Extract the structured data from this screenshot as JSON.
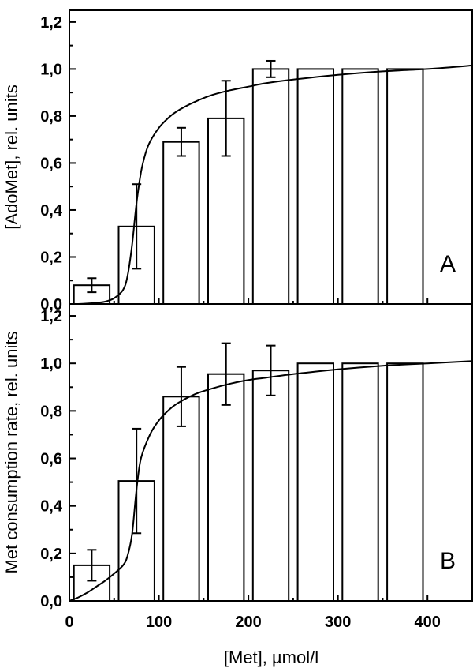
{
  "chart_data": [
    {
      "type": "bar",
      "panel_label": "A",
      "ylabel": "[AdoMet], rel. units",
      "xlabel": "",
      "ylim": [
        0,
        1.25
      ],
      "xlim": [
        0,
        450
      ],
      "yticks": [
        "0,0",
        "0,2",
        "0,4",
        "0,6",
        "0,8",
        "1,0",
        "1,2"
      ],
      "xticks": [],
      "grid": false,
      "x": [
        25,
        75,
        125,
        175,
        225,
        275,
        325,
        375
      ],
      "values": [
        0.08,
        0.33,
        0.69,
        0.79,
        1.0,
        1.0,
        1.0,
        1.0
      ],
      "errors": [
        0.03,
        0.18,
        0.06,
        0.16,
        0.035,
        0,
        0,
        0
      ],
      "fit_curve": {
        "x": [
          0,
          10,
          20,
          30,
          40,
          50,
          60,
          65,
          70,
          75,
          80,
          85,
          90,
          100,
          110,
          120,
          140,
          160,
          180,
          200,
          220,
          250,
          300,
          350,
          400,
          450
        ],
        "y": [
          0,
          0,
          0.002,
          0.005,
          0.01,
          0.025,
          0.06,
          0.12,
          0.25,
          0.43,
          0.56,
          0.64,
          0.69,
          0.75,
          0.79,
          0.82,
          0.86,
          0.89,
          0.91,
          0.925,
          0.94,
          0.955,
          0.975,
          0.99,
          1.0,
          1.015
        ]
      }
    },
    {
      "type": "bar",
      "panel_label": "B",
      "ylabel": "Met consumption rate, rel. units",
      "xlabel": "[Met], µmol/l",
      "ylim": [
        0,
        1.25
      ],
      "xlim": [
        0,
        450
      ],
      "yticks": [
        "0,0",
        "0,2",
        "0,4",
        "0,6",
        "0,8",
        "1,0",
        "1,2"
      ],
      "xticks": [
        "0",
        "100",
        "200",
        "300",
        "400"
      ],
      "grid": false,
      "x": [
        25,
        75,
        125,
        175,
        225,
        275,
        325,
        375
      ],
      "values": [
        0.15,
        0.505,
        0.86,
        0.955,
        0.97,
        1.0,
        1.0,
        1.0
      ],
      "errors": [
        0.065,
        0.22,
        0.125,
        0.13,
        0.105,
        0,
        0,
        0
      ],
      "fit_curve": {
        "x": [
          0,
          10,
          20,
          30,
          40,
          50,
          60,
          65,
          70,
          75,
          80,
          90,
          100,
          110,
          120,
          140,
          160,
          180,
          200,
          220,
          250,
          300,
          350,
          400,
          450
        ],
        "y": [
          0,
          0.015,
          0.035,
          0.06,
          0.085,
          0.115,
          0.15,
          0.19,
          0.28,
          0.47,
          0.6,
          0.7,
          0.76,
          0.8,
          0.83,
          0.87,
          0.895,
          0.915,
          0.93,
          0.94,
          0.955,
          0.975,
          0.99,
          1.0,
          1.01
        ]
      }
    }
  ]
}
